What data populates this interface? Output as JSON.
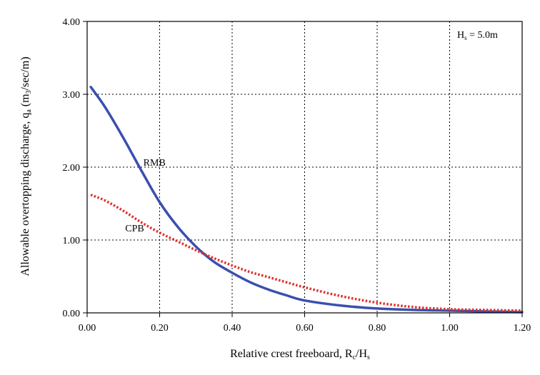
{
  "chart_data": {
    "type": "line",
    "xlabel": "Relative crest freeboard, R",
    "xlabel_sub1": "c",
    "xlabel_mid": "/H",
    "xlabel_sub2": "s",
    "ylabel": "Allowable overtopping discharge, q",
    "ylabel_sub": "a",
    "ylabel_unit_open": " (m",
    "ylabel_unit_sub": "3",
    "ylabel_unit_close": "/sec/m)",
    "annotation_main": "H",
    "annotation_sub": "s",
    "annotation_rest": " = 5.0m",
    "xlim": [
      0,
      1.2
    ],
    "ylim": [
      0,
      4
    ],
    "grid": true,
    "x_ticks": [
      0.0,
      0.2,
      0.4,
      0.6,
      0.8,
      1.0,
      1.2
    ],
    "x_tick_labels": [
      "0.00",
      "0.20",
      "0.40",
      "0.60",
      "0.80",
      "1.00",
      "1.20"
    ],
    "y_ticks": [
      0,
      1,
      2,
      3,
      4
    ],
    "y_tick_labels": [
      "0.00",
      "1.00",
      "2.00",
      "3.00",
      "4.00"
    ],
    "series": [
      {
        "name": "RMB",
        "color": "#3a4fae",
        "style": "solid",
        "label_at": [
          0.155,
          2.02
        ],
        "x": [
          0.01,
          0.05,
          0.1,
          0.15,
          0.2,
          0.25,
          0.3,
          0.35,
          0.4,
          0.45,
          0.5,
          0.55,
          0.6,
          0.7,
          0.8,
          0.9,
          1.0,
          1.1,
          1.2
        ],
        "values": [
          3.1,
          2.82,
          2.4,
          1.95,
          1.52,
          1.18,
          0.91,
          0.7,
          0.55,
          0.42,
          0.32,
          0.24,
          0.17,
          0.1,
          0.06,
          0.04,
          0.03,
          0.02,
          0.01
        ]
      },
      {
        "name": "CPB",
        "color": "#e0302a",
        "style": "dotted",
        "label_at": [
          0.105,
          1.12
        ],
        "x": [
          0.01,
          0.05,
          0.1,
          0.15,
          0.2,
          0.25,
          0.3,
          0.35,
          0.4,
          0.45,
          0.5,
          0.55,
          0.6,
          0.7,
          0.8,
          0.9,
          1.0,
          1.1,
          1.2
        ],
        "values": [
          1.62,
          1.54,
          1.4,
          1.24,
          1.1,
          0.98,
          0.86,
          0.75,
          0.65,
          0.56,
          0.49,
          0.42,
          0.35,
          0.23,
          0.14,
          0.08,
          0.05,
          0.04,
          0.03
        ]
      }
    ]
  }
}
